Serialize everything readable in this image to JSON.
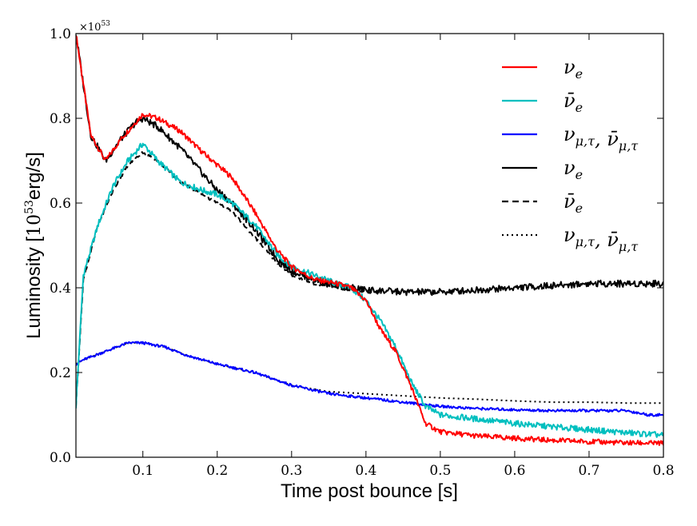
{
  "chart_data": {
    "type": "line",
    "title": "",
    "xlabel": "Time post bounce [s]",
    "ylabel_text": "Luminosity [",
    "ylabel_unit_base": "10",
    "ylabel_unit_exp": "53",
    "ylabel_unit_rest": "erg/s]",
    "y_multiplier_base": "×10",
    "y_multiplier_exp": "53",
    "xlim": [
      0.01,
      0.8
    ],
    "ylim": [
      0.0,
      1.0
    ],
    "xticks": [
      0.1,
      0.2,
      0.3,
      0.4,
      0.5,
      0.6,
      0.7,
      0.8
    ],
    "xtick_labels": [
      "0.1",
      "0.2",
      "0.3",
      "0.4",
      "0.5",
      "0.6",
      "0.7",
      "0.8"
    ],
    "yticks": [
      0.0,
      0.2,
      0.4,
      0.6,
      0.8,
      1.0
    ],
    "ytick_labels": [
      "0.0",
      "0.2",
      "0.4",
      "0.6",
      "0.8",
      "1.0"
    ],
    "grid": false,
    "legend_position": "top-right",
    "series": [
      {
        "name": "ν_e (red)",
        "label_main": "ν",
        "label_sub": "e",
        "label_bar": false,
        "color": "#ff0000",
        "dash": "solid",
        "noise": 0.006,
        "x": [
          0.01,
          0.03,
          0.05,
          0.07,
          0.09,
          0.1,
          0.12,
          0.15,
          0.18,
          0.2,
          0.22,
          0.25,
          0.28,
          0.3,
          0.33,
          0.36,
          0.38,
          0.4,
          0.42,
          0.44,
          0.46,
          0.48,
          0.5,
          0.55,
          0.6,
          0.65,
          0.7,
          0.75,
          0.8
        ],
        "y": [
          1.0,
          0.76,
          0.7,
          0.75,
          0.79,
          0.81,
          0.8,
          0.77,
          0.72,
          0.69,
          0.66,
          0.58,
          0.49,
          0.45,
          0.42,
          0.41,
          0.4,
          0.37,
          0.3,
          0.25,
          0.17,
          0.08,
          0.06,
          0.05,
          0.045,
          0.04,
          0.037,
          0.034,
          0.033
        ]
      },
      {
        "name": "ν̄_e (cyan)",
        "label_main": "ν",
        "label_sub": "e",
        "label_bar": true,
        "color": "#00bfbf",
        "dash": "solid",
        "noise": 0.007,
        "x": [
          0.01,
          0.02,
          0.04,
          0.06,
          0.08,
          0.1,
          0.12,
          0.15,
          0.18,
          0.2,
          0.22,
          0.25,
          0.28,
          0.3,
          0.33,
          0.36,
          0.38,
          0.4,
          0.42,
          0.44,
          0.46,
          0.48,
          0.5,
          0.55,
          0.6,
          0.65,
          0.7,
          0.75,
          0.8
        ],
        "y": [
          0.12,
          0.43,
          0.55,
          0.64,
          0.7,
          0.74,
          0.7,
          0.65,
          0.63,
          0.62,
          0.6,
          0.55,
          0.48,
          0.45,
          0.43,
          0.41,
          0.4,
          0.37,
          0.32,
          0.26,
          0.18,
          0.12,
          0.1,
          0.09,
          0.08,
          0.072,
          0.065,
          0.058,
          0.052
        ]
      },
      {
        "name": "ν_μτ, ν̄_μτ (blue)",
        "label_main": "ν",
        "label_sub": "μ,τ",
        "label_bar": false,
        "label_pair": true,
        "color": "#0000ff",
        "dash": "solid",
        "noise": 0.003,
        "x": [
          0.01,
          0.02,
          0.05,
          0.08,
          0.1,
          0.13,
          0.16,
          0.2,
          0.25,
          0.3,
          0.35,
          0.4,
          0.45,
          0.5,
          0.55,
          0.6,
          0.65,
          0.7,
          0.75,
          0.78,
          0.8
        ],
        "y": [
          0.22,
          0.23,
          0.25,
          0.27,
          0.27,
          0.26,
          0.24,
          0.22,
          0.2,
          0.17,
          0.15,
          0.14,
          0.13,
          0.12,
          0.115,
          0.112,
          0.11,
          0.11,
          0.11,
          0.1,
          0.1
        ]
      },
      {
        "name": "ν_e (black solid)",
        "label_main": "ν",
        "label_sub": "e",
        "label_bar": false,
        "color": "#000000",
        "dash": "solid",
        "noise": 0.008,
        "x": [
          0.01,
          0.03,
          0.05,
          0.07,
          0.09,
          0.1,
          0.12,
          0.15,
          0.18,
          0.2,
          0.22,
          0.25,
          0.28,
          0.3,
          0.33,
          0.36,
          0.38,
          0.4,
          0.45,
          0.5,
          0.55,
          0.6,
          0.65,
          0.7,
          0.75,
          0.8
        ],
        "y": [
          1.0,
          0.76,
          0.7,
          0.75,
          0.79,
          0.8,
          0.78,
          0.73,
          0.67,
          0.63,
          0.6,
          0.54,
          0.47,
          0.44,
          0.42,
          0.405,
          0.4,
          0.395,
          0.39,
          0.39,
          0.395,
          0.4,
          0.405,
          0.41,
          0.41,
          0.41
        ]
      },
      {
        "name": "ν̄_e (black dashed)",
        "label_main": "ν",
        "label_sub": "e",
        "label_bar": true,
        "color": "#000000",
        "dash": "8,5",
        "noise": 0.003,
        "x": [
          0.01,
          0.02,
          0.04,
          0.06,
          0.08,
          0.1,
          0.12,
          0.15,
          0.18,
          0.2,
          0.22,
          0.25,
          0.28,
          0.3,
          0.33,
          0.36,
          0.38,
          0.4,
          0.42
        ],
        "y": [
          0.12,
          0.42,
          0.55,
          0.63,
          0.69,
          0.72,
          0.7,
          0.65,
          0.62,
          0.6,
          0.58,
          0.52,
          0.46,
          0.43,
          0.41,
          0.4,
          0.395,
          0.39,
          0.39
        ]
      },
      {
        "name": "ν_μτ, ν̄_μτ (black dash-dot)",
        "label_main": "ν",
        "label_sub": "μ,τ",
        "label_bar": false,
        "label_pair": true,
        "color": "#000000",
        "dash": "2,4",
        "noise": 0.0,
        "x": [
          0.01,
          0.02,
          0.05,
          0.08,
          0.1,
          0.13,
          0.16,
          0.2,
          0.25,
          0.3,
          0.35,
          0.4,
          0.45,
          0.5,
          0.55,
          0.6,
          0.65,
          0.7,
          0.75,
          0.8
        ],
        "y": [
          0.22,
          0.23,
          0.25,
          0.27,
          0.27,
          0.26,
          0.24,
          0.22,
          0.2,
          0.17,
          0.155,
          0.15,
          0.145,
          0.14,
          0.137,
          0.133,
          0.13,
          0.13,
          0.128,
          0.128
        ]
      }
    ]
  }
}
